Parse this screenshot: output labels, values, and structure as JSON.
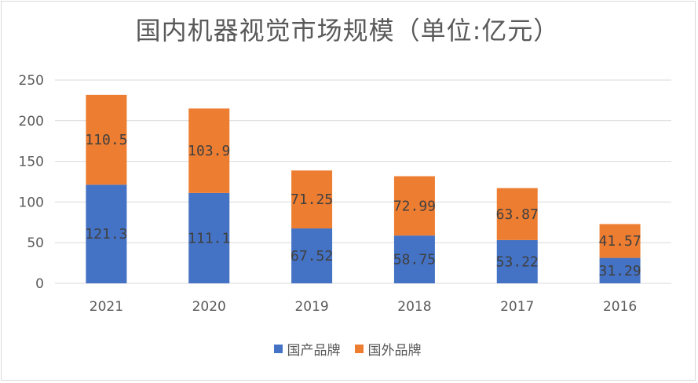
{
  "chart_data": {
    "type": "bar",
    "stacked": true,
    "title": "国内机器视觉市场规模（单位:亿元）",
    "categories": [
      "2021",
      "2020",
      "2019",
      "2018",
      "2017",
      "2016"
    ],
    "series": [
      {
        "name": "国产品牌",
        "color": "#4472c4",
        "values": [
          121.3,
          111.1,
          67.52,
          58.75,
          53.22,
          31.29
        ]
      },
      {
        "name": "国外品牌",
        "color": "#ed7d31",
        "values": [
          110.5,
          103.9,
          71.25,
          72.99,
          63.87,
          41.57
        ]
      }
    ],
    "ylim": [
      0,
      250
    ],
    "yticks": [
      "0",
      "50",
      "100",
      "150",
      "200",
      "250"
    ],
    "grid": true,
    "legend_position": "bottom"
  },
  "labels": {
    "s0": [
      "121.3",
      "111.1",
      "67.52",
      "58.75",
      "53.22",
      "31.29"
    ],
    "s1": [
      "110.5",
      "103.9",
      "71.25",
      "72.99",
      "63.87",
      "41.57"
    ]
  }
}
